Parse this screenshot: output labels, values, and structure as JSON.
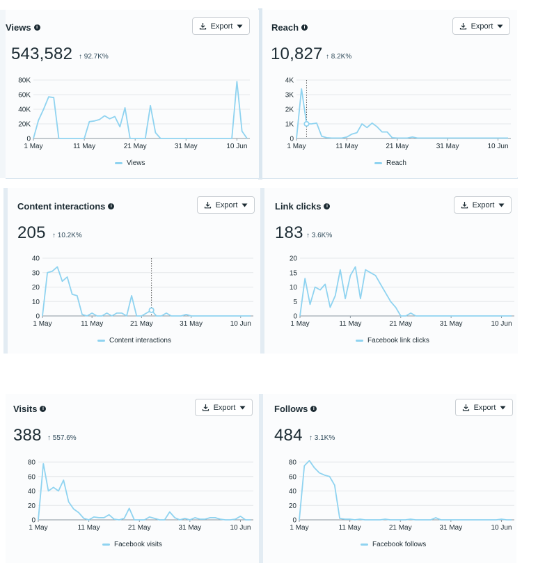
{
  "export_label": "Export",
  "series_color": "#8fd3f0",
  "cards": [
    {
      "title": "Views",
      "total": "543,582",
      "change": "↑ 92.7K%",
      "legend": "Views",
      "chart_data": {
        "type": "line",
        "x": [
          "1 May",
          "2 May",
          "3 May",
          "4 May",
          "5 May",
          "6 May",
          "7 May",
          "8 May",
          "9 May",
          "10 May",
          "11 May",
          "12 May",
          "13 May",
          "14 May",
          "15 May",
          "16 May",
          "17 May",
          "18 May",
          "19 May",
          "20 May",
          "21 May",
          "22 May",
          "23 May",
          "24 May",
          "25 May",
          "26 May",
          "27 May",
          "28 May",
          "29 May",
          "30 May",
          "31 May",
          "1 Jun",
          "2 Jun",
          "3 Jun",
          "4 Jun",
          "5 Jun",
          "6 Jun",
          "7 Jun",
          "8 Jun",
          "9 Jun",
          "10 Jun",
          "11 Jun",
          "12 Jun"
        ],
        "x_ticks": [
          "1 May",
          "11 May",
          "21 May",
          "31 May",
          "10 Jun"
        ],
        "y_ticks": [
          0,
          20000,
          40000,
          60000,
          80000
        ],
        "y_tick_labels": [
          "0",
          "20K",
          "40K",
          "60K",
          "80K"
        ],
        "ylim": [
          0,
          80000
        ],
        "series": [
          {
            "name": "Views",
            "values": [
              0,
              25000,
              40000,
              57000,
              56000,
              0,
              0,
              0,
              0,
              0,
              0,
              23000,
              24000,
              26000,
              31000,
              27000,
              30000,
              16000,
              42000,
              0,
              0,
              0,
              0,
              45000,
              8000,
              0,
              0,
              0,
              0,
              0,
              0,
              0,
              0,
              0,
              0,
              0,
              0,
              0,
              0,
              0,
              78000,
              10000,
              0
            ]
          }
        ]
      }
    },
    {
      "title": "Reach",
      "total": "10,827",
      "change": "↑ 8.2K%",
      "legend": "Reach",
      "chart_data": {
        "type": "line",
        "x": [
          "1 May",
          "2 May",
          "3 May",
          "4 May",
          "5 May",
          "6 May",
          "7 May",
          "8 May",
          "9 May",
          "10 May",
          "11 May",
          "12 May",
          "13 May",
          "14 May",
          "15 May",
          "16 May",
          "17 May",
          "18 May",
          "19 May",
          "20 May",
          "21 May",
          "22 May",
          "23 May",
          "24 May",
          "25 May",
          "26 May",
          "27 May",
          "28 May",
          "29 May",
          "30 May",
          "31 May",
          "1 Jun",
          "2 Jun",
          "3 Jun",
          "4 Jun",
          "5 Jun",
          "6 Jun",
          "7 Jun",
          "8 Jun",
          "9 Jun",
          "10 Jun",
          "11 Jun",
          "12 Jun"
        ],
        "x_ticks": [
          "1 May",
          "11 May",
          "21 May",
          "31 May",
          "10 Jun"
        ],
        "y_ticks": [
          0,
          1000,
          2000,
          3000,
          4000
        ],
        "y_tick_labels": [
          "0",
          "1K",
          "2K",
          "3K",
          "4K"
        ],
        "ylim": [
          0,
          4000
        ],
        "marker_index": 2,
        "series": [
          {
            "name": "Reach",
            "values": [
              0,
              3400,
              1000,
              1000,
              1050,
              150,
              50,
              30,
              30,
              30,
              100,
              300,
              400,
              1000,
              750,
              1050,
              800,
              450,
              450,
              50,
              30,
              30,
              30,
              100,
              30,
              30,
              30,
              30,
              30,
              30,
              30,
              30,
              30,
              30,
              30,
              30,
              30,
              30,
              30,
              30,
              30,
              30,
              30
            ]
          }
        ]
      }
    },
    {
      "title": "Content interactions",
      "total": "205",
      "change": "↑ 10.2K%",
      "legend": "Content interactions",
      "chart_data": {
        "type": "line",
        "x": [
          "1 May",
          "2 May",
          "3 May",
          "4 May",
          "5 May",
          "6 May",
          "7 May",
          "8 May",
          "9 May",
          "10 May",
          "11 May",
          "12 May",
          "13 May",
          "14 May",
          "15 May",
          "16 May",
          "17 May",
          "18 May",
          "19 May",
          "20 May",
          "21 May",
          "22 May",
          "23 May",
          "24 May",
          "25 May",
          "26 May",
          "27 May",
          "28 May",
          "29 May",
          "30 May",
          "31 May",
          "1 Jun",
          "2 Jun",
          "3 Jun",
          "4 Jun",
          "5 Jun",
          "6 Jun",
          "7 Jun",
          "8 Jun",
          "9 Jun",
          "10 Jun",
          "11 Jun",
          "12 Jun"
        ],
        "x_ticks": [
          "1 May",
          "11 May",
          "21 May",
          "31 May",
          "10 Jun"
        ],
        "y_ticks": [
          0,
          10,
          20,
          30,
          40
        ],
        "y_tick_labels": [
          "0",
          "10",
          "20",
          "30",
          "40"
        ],
        "ylim": [
          0,
          40
        ],
        "marker_index": 22,
        "series": [
          {
            "name": "Content interactions",
            "values": [
              0,
              30,
              31,
              34,
              24,
              27,
              15,
              14,
              1,
              0,
              2,
              0,
              0,
              2,
              0,
              2,
              2,
              0,
              14,
              0,
              0,
              2,
              4,
              0,
              0,
              2,
              0,
              0,
              0,
              1,
              0,
              0,
              0,
              0,
              0,
              0,
              0,
              0,
              0,
              0,
              0,
              0,
              0
            ]
          }
        ]
      }
    },
    {
      "title": "Link clicks",
      "total": "183",
      "change": "↑ 3.6K%",
      "legend": "Facebook link clicks",
      "chart_data": {
        "type": "line",
        "x": [
          "1 May",
          "2 May",
          "3 May",
          "4 May",
          "5 May",
          "6 May",
          "7 May",
          "8 May",
          "9 May",
          "10 May",
          "11 May",
          "12 May",
          "13 May",
          "14 May",
          "15 May",
          "16 May",
          "17 May",
          "18 May",
          "19 May",
          "20 May",
          "21 May",
          "22 May",
          "23 May",
          "24 May",
          "25 May",
          "26 May",
          "27 May",
          "28 May",
          "29 May",
          "30 May",
          "31 May",
          "1 Jun",
          "2 Jun",
          "3 Jun",
          "4 Jun",
          "5 Jun",
          "6 Jun",
          "7 Jun",
          "8 Jun",
          "9 Jun",
          "10 Jun",
          "11 Jun",
          "12 Jun"
        ],
        "x_ticks": [
          "1 May",
          "11 May",
          "21 May",
          "31 May",
          "10 Jun"
        ],
        "y_ticks": [
          0,
          5,
          10,
          15,
          20
        ],
        "y_tick_labels": [
          "0",
          "5",
          "10",
          "15",
          "20"
        ],
        "ylim": [
          0,
          20
        ],
        "series": [
          {
            "name": "Facebook link clicks",
            "values": [
              0,
              13,
              4,
              10,
              9,
              11,
              3,
              7,
              16,
              6,
              14,
              17,
              6,
              16,
              15,
              14,
              11,
              8,
              5,
              3,
              0,
              0,
              1,
              0,
              0,
              0,
              0,
              0,
              0,
              0,
              0,
              0,
              0,
              0,
              0,
              0,
              0,
              0,
              0,
              0,
              0,
              0,
              0
            ]
          }
        ]
      }
    },
    {
      "title": "Visits",
      "total": "388",
      "change": "↑ 557.6%",
      "legend": "Facebook visits",
      "chart_data": {
        "type": "line",
        "x": [
          "1 May",
          "2 May",
          "3 May",
          "4 May",
          "5 May",
          "6 May",
          "7 May",
          "8 May",
          "9 May",
          "10 May",
          "11 May",
          "12 May",
          "13 May",
          "14 May",
          "15 May",
          "16 May",
          "17 May",
          "18 May",
          "19 May",
          "20 May",
          "21 May",
          "22 May",
          "23 May",
          "24 May",
          "25 May",
          "26 May",
          "27 May",
          "28 May",
          "29 May",
          "30 May",
          "31 May",
          "1 Jun",
          "2 Jun",
          "3 Jun",
          "4 Jun",
          "5 Jun",
          "6 Jun",
          "7 Jun",
          "8 Jun",
          "9 Jun",
          "10 Jun",
          "11 Jun",
          "12 Jun"
        ],
        "x_ticks": [
          "1 May",
          "11 May",
          "21 May",
          "31 May",
          "10 Jun"
        ],
        "y_ticks": [
          0,
          20,
          40,
          60,
          80
        ],
        "y_tick_labels": [
          "0",
          "20",
          "40",
          "60",
          "80"
        ],
        "ylim": [
          0,
          80
        ],
        "series": [
          {
            "name": "Facebook visits",
            "values": [
              0,
              78,
              40,
              45,
              40,
              55,
              25,
              15,
              10,
              2,
              0,
              4,
              3,
              3,
              7,
              1,
              0,
              2,
              16,
              0,
              0,
              0,
              4,
              2,
              0,
              0,
              11,
              3,
              0,
              2,
              0,
              3,
              1,
              1,
              3,
              3,
              1,
              0,
              0,
              1,
              5,
              0,
              0
            ]
          }
        ]
      }
    },
    {
      "title": "Follows",
      "total": "484",
      "change": "↑ 3.1K%",
      "legend": "Facebook follows",
      "chart_data": {
        "type": "line",
        "x": [
          "1 May",
          "2 May",
          "3 May",
          "4 May",
          "5 May",
          "6 May",
          "7 May",
          "8 May",
          "9 May",
          "10 May",
          "11 May",
          "12 May",
          "13 May",
          "14 May",
          "15 May",
          "16 May",
          "17 May",
          "18 May",
          "19 May",
          "20 May",
          "21 May",
          "22 May",
          "23 May",
          "24 May",
          "25 May",
          "26 May",
          "27 May",
          "28 May",
          "29 May",
          "30 May",
          "31 May",
          "1 Jun",
          "2 Jun",
          "3 Jun",
          "4 Jun",
          "5 Jun",
          "6 Jun",
          "7 Jun",
          "8 Jun",
          "9 Jun",
          "10 Jun",
          "11 Jun",
          "12 Jun"
        ],
        "x_ticks": [
          "1 May",
          "11 May",
          "21 May",
          "31 May",
          "10 Jun"
        ],
        "y_ticks": [
          0,
          20,
          40,
          60,
          80
        ],
        "y_tick_labels": [
          "0",
          "20",
          "40",
          "60",
          "80"
        ],
        "ylim": [
          0,
          80
        ],
        "series": [
          {
            "name": "Facebook follows",
            "values": [
              0,
              75,
              82,
              72,
              65,
              62,
              60,
              48,
              2,
              1,
              1,
              0,
              1,
              0,
              0,
              0,
              0,
              1,
              0,
              0,
              0,
              0,
              1,
              0,
              0,
              0,
              0,
              3,
              0,
              0,
              0,
              0,
              0,
              0,
              0,
              0,
              0,
              0,
              0,
              0,
              1,
              0,
              0
            ]
          }
        ]
      }
    }
  ]
}
